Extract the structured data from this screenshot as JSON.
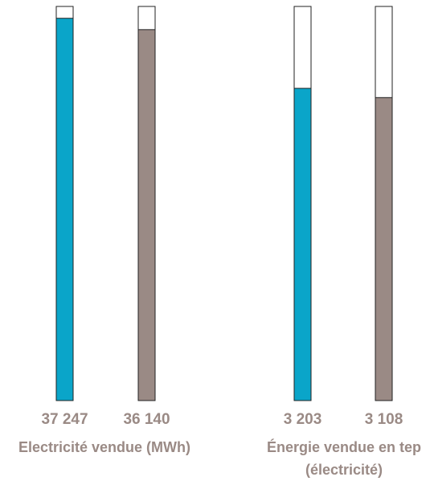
{
  "chart_data": [
    {
      "type": "bar",
      "categories": [
        "Électricité vendue (MWh)"
      ],
      "series": [
        {
          "values": [
            37247
          ]
        },
        {
          "values": [
            36140
          ]
        }
      ],
      "value_labels": [
        "37 247",
        "36 140"
      ],
      "group_label_lines": [
        "Electricité vendue (MWh)"
      ],
      "ylim": [
        0,
        38400
      ]
    },
    {
      "type": "bar",
      "categories": [
        "Énergie vendue en tep (électricité)"
      ],
      "series": [
        {
          "values": [
            3203
          ]
        },
        {
          "values": [
            3108
          ]
        }
      ],
      "value_labels": [
        "3 203",
        "3 108"
      ],
      "group_label_lines": [
        "Énergie vendue en tep",
        "(électricité)"
      ],
      "ylim": [
        0,
        4043
      ]
    }
  ],
  "colors": {
    "series_1": "#0aa5c9",
    "series_2": "#9a8a85",
    "text": "#9a8a85",
    "outline": "#222222",
    "empty": "#ffffff"
  }
}
